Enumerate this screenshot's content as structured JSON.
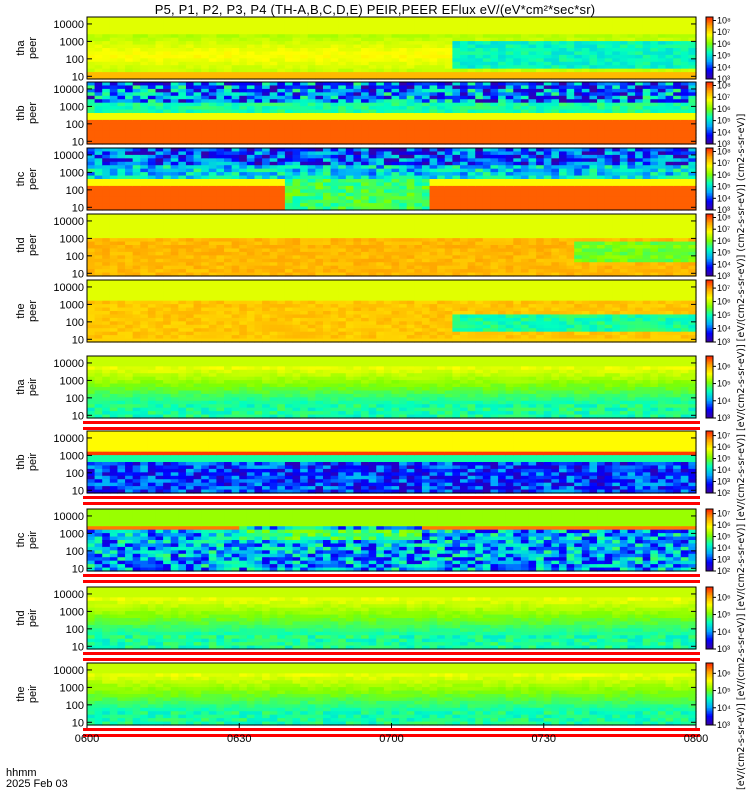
{
  "title": "P5, P1, P2, P3, P4 (TH-A,B,C,D,E) PEIR,PEER EFlux eV/(eV*cm²*sec*sr)",
  "units_label": "[eV/(cm2-s-sr-eV)] [eV/(cm2-s-sr-eV)] [eV/(cm2-s-sr-eV)] [eV/(cm2-s-sr-eV)] [eV/(cm2-s-sr-eV)] [eV/(cm2-s-sr-eV)] (cm2-s-sr-eV)] (cm2-s-sr-eV)]",
  "time_axis": {
    "label_line1": "hhmm",
    "label_line2": "2025 Feb 03",
    "ticks": [
      "0600",
      "0630",
      "0700",
      "0730",
      "0800"
    ]
  },
  "chart_data": {
    "type": "heatmap",
    "x_range": [
      "0600",
      "0800"
    ],
    "y_scale": "log",
    "y_range_eV": [
      7,
      25000
    ],
    "y_ticks": [
      "10",
      "100",
      "1000",
      "10000"
    ],
    "colormap": [
      "#3a00a0",
      "#0000ff",
      "#00aaff",
      "#00ffc0",
      "#80ff00",
      "#ffff00",
      "#ffa000",
      "#ff2000"
    ],
    "panels": [
      {
        "label_top": "tha",
        "label_bottom": "peer",
        "cb_ticks": [
          "10³",
          "10⁴",
          "10⁵",
          "10⁶",
          "10⁷",
          "10⁸"
        ],
        "min_exp": 3,
        "max_exp": 8.3,
        "pattern": "tha_peer"
      },
      {
        "label_top": "thb",
        "label_bottom": "peer",
        "cb_ticks": [
          "10³",
          "10⁴",
          "10⁵",
          "10⁶",
          "10⁷",
          "10⁸"
        ],
        "min_exp": 3,
        "max_exp": 8.3,
        "pattern": "thb_peer"
      },
      {
        "label_top": "thc",
        "label_bottom": "peer",
        "cb_ticks": [
          "10³",
          "10⁴",
          "10⁵",
          "10⁶",
          "10⁷",
          "10⁸"
        ],
        "min_exp": 3,
        "max_exp": 8.3,
        "pattern": "thc_peer"
      },
      {
        "label_top": "thd",
        "label_bottom": "peer",
        "cb_ticks": [
          "10³",
          "10⁴",
          "10⁵",
          "10⁶",
          "10⁷",
          "10⁸"
        ],
        "min_exp": 3,
        "max_exp": 8.3,
        "pattern": "thd_peer"
      },
      {
        "label_top": "the",
        "label_bottom": "peer",
        "cb_ticks": [
          "10³",
          "10⁴",
          "10⁵",
          "10⁶",
          "10⁷"
        ],
        "min_exp": 3,
        "max_exp": 7.6,
        "pattern": "the_peer"
      },
      {
        "label_top": "tha",
        "label_bottom": "peir",
        "cb_ticks": [
          "10³",
          "10⁴",
          "10⁵",
          "10⁶"
        ],
        "min_exp": 3,
        "max_exp": 6.6,
        "pattern": "tha_peir"
      },
      {
        "label_top": "thb",
        "label_bottom": "peir",
        "cb_ticks": [
          "10²",
          "10³",
          "10⁴",
          "10⁵",
          "10⁶",
          "10⁷"
        ],
        "min_exp": 2,
        "max_exp": 7.4,
        "pattern": "thb_peir"
      },
      {
        "label_top": "thc",
        "label_bottom": "peir",
        "cb_ticks": [
          "10²",
          "10³",
          "10⁴",
          "10⁵",
          "10⁶",
          "10⁷"
        ],
        "min_exp": 2,
        "max_exp": 7.4,
        "pattern": "thc_peir"
      },
      {
        "label_top": "thd",
        "label_bottom": "peir",
        "cb_ticks": [
          "10³",
          "10⁴",
          "10⁵",
          "10⁶"
        ],
        "min_exp": 3,
        "max_exp": 6.6,
        "pattern": "thd_peir"
      },
      {
        "label_top": "the",
        "label_bottom": "peir",
        "cb_ticks": [
          "10³",
          "10⁴",
          "10⁵",
          "10⁶"
        ],
        "min_exp": 3,
        "max_exp": 6.6,
        "pattern": "the_peir"
      }
    ]
  }
}
